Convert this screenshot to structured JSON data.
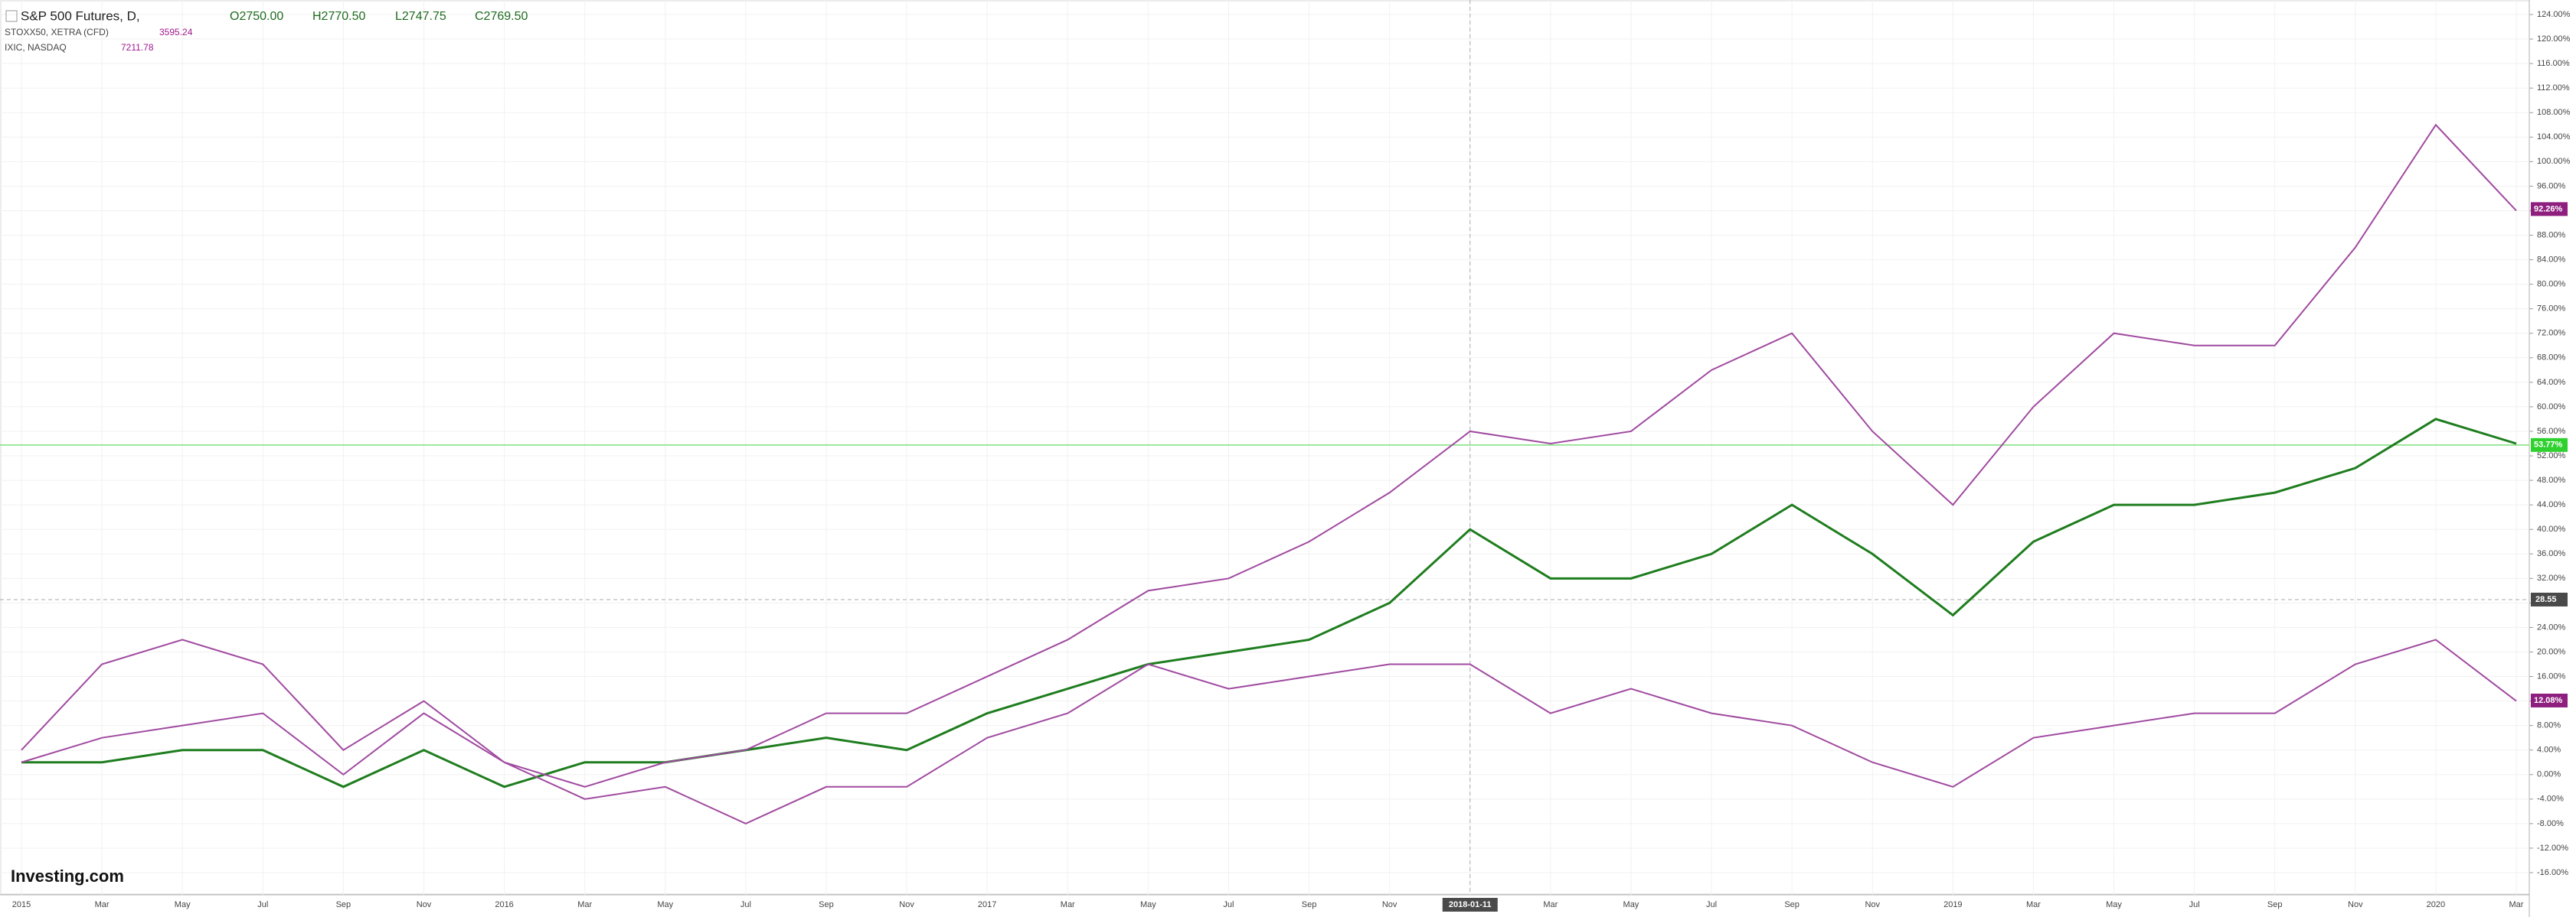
{
  "chart_data": {
    "type": "line",
    "header": {
      "title": "S&P 500 Futures, D,",
      "open": "O2750.00",
      "high": "H2770.50",
      "low": "L2747.75",
      "close": "C2769.50"
    },
    "logo": "Investing.com",
    "categories": [
      "2015",
      "Mar",
      "May",
      "Jul",
      "Sep",
      "Nov",
      "2016",
      "Mar",
      "May",
      "Jul",
      "Sep",
      "Nov",
      "2017",
      "Mar",
      "May",
      "Jul",
      "Sep",
      "Nov",
      "2018-01-11",
      "Mar",
      "May",
      "Jul",
      "Sep",
      "Nov",
      "2019",
      "Mar",
      "May",
      "Jul",
      "Sep",
      "Nov",
      "2020",
      "Mar"
    ],
    "series": [
      {
        "name": "S&P 500 Futures",
        "color": "#1e7d1e",
        "end_value": 53.77,
        "end_label": "53.77%",
        "end_color": "#2fd12f",
        "values": [
          2,
          2,
          4,
          4,
          -2,
          4,
          -2,
          2,
          2,
          4,
          6,
          4,
          10,
          14,
          18,
          20,
          22,
          28,
          40,
          32,
          32,
          36,
          44,
          36,
          26,
          38,
          44,
          44,
          46,
          50,
          58,
          54
        ]
      },
      {
        "name": "STOXX50, XETRA (CFD)",
        "last": "3595.24",
        "color": "#a04aa0",
        "end_value": 12.08,
        "end_label": "12.08%",
        "end_color": "#8e1f7e",
        "values": [
          4,
          18,
          22,
          18,
          4,
          12,
          2,
          -4,
          -2,
          -8,
          -2,
          -2,
          6,
          10,
          18,
          14,
          16,
          18,
          18,
          10,
          14,
          10,
          8,
          2,
          -2,
          6,
          8,
          10,
          10,
          18,
          22,
          12
        ]
      },
      {
        "name": "IXIC, NASDAQ",
        "last": "7211.78",
        "color": "#a04aa0",
        "end_value": 92.26,
        "end_label": "92.26%",
        "end_color": "#8e1f7e",
        "values": [
          2,
          6,
          8,
          10,
          0,
          10,
          2,
          -2,
          2,
          4,
          10,
          10,
          16,
          22,
          30,
          32,
          38,
          46,
          56,
          54,
          56,
          66,
          72,
          56,
          44,
          60,
          72,
          70,
          70,
          86,
          106,
          92
        ]
      }
    ],
    "crosshair": {
      "value": 28.55,
      "label": "28.55"
    },
    "ylim": [
      -16,
      124
    ],
    "yticks": [
      {
        "value": -16,
        "label": "-16.00%"
      },
      {
        "value": -12,
        "label": "-12.00%"
      },
      {
        "value": -8,
        "label": "-8.00%"
      },
      {
        "value": -4,
        "label": "-4.00%"
      },
      {
        "value": 0,
        "label": "0.00%"
      },
      {
        "value": 4,
        "label": "4.00%"
      },
      {
        "value": 8,
        "label": "8.00%"
      },
      {
        "value": 12,
        "label": "12.00%"
      },
      {
        "value": 16,
        "label": "16.00%"
      },
      {
        "value": 20,
        "label": "20.00%"
      },
      {
        "value": 24,
        "label": "24.00%"
      },
      {
        "value": 28,
        "label": "28.00%"
      },
      {
        "value": 32,
        "label": "32.00%"
      },
      {
        "value": 36,
        "label": "36.00%"
      },
      {
        "value": 40,
        "label": "40.00%"
      },
      {
        "value": 44,
        "label": "44.00%"
      },
      {
        "value": 48,
        "label": "48.00%"
      },
      {
        "value": 52,
        "label": "52.00%"
      },
      {
        "value": 56,
        "label": "56.00%"
      },
      {
        "value": 60,
        "label": "60.00%"
      },
      {
        "value": 64,
        "label": "64.00%"
      },
      {
        "value": 68,
        "label": "68.00%"
      },
      {
        "value": 72,
        "label": "72.00%"
      },
      {
        "value": 76,
        "label": "76.00%"
      },
      {
        "value": 80,
        "label": "80.00%"
      },
      {
        "value": 84,
        "label": "84.00%"
      },
      {
        "value": 88,
        "label": "88.00%"
      },
      {
        "value": 92,
        "label": "92.00%"
      },
      {
        "value": 96,
        "label": "96.00%"
      },
      {
        "value": 100,
        "label": "100.00%"
      },
      {
        "value": 104,
        "label": "104.00%"
      },
      {
        "value": 108,
        "label": "108.00%"
      },
      {
        "value": 112,
        "label": "112.00%"
      },
      {
        "value": 116,
        "label": "116.00%"
      },
      {
        "value": 120,
        "label": "120.00%"
      },
      {
        "value": 124,
        "label": "124.00%"
      }
    ],
    "grid": true
  }
}
